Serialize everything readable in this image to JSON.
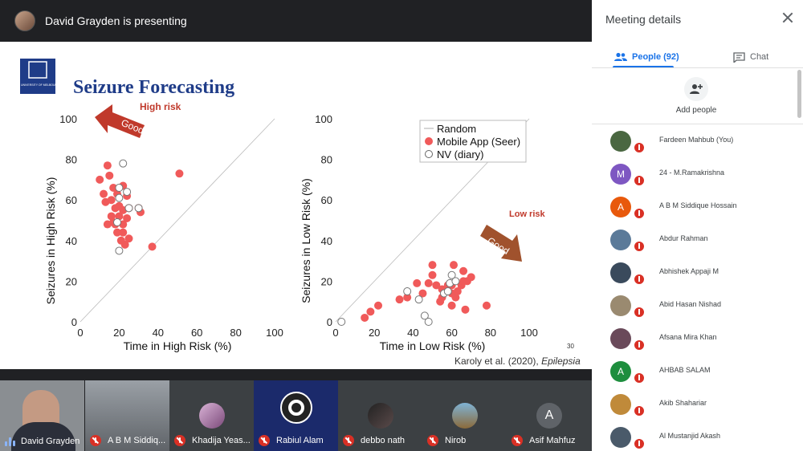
{
  "presenter_bar": {
    "title": "David Grayden is presenting"
  },
  "slide": {
    "logo_text": "THE UNIVERSITY OF MELBOURNE",
    "title": "Seizure Forecasting",
    "high_risk_label": "High risk",
    "low_risk_label": "Low risk",
    "good_label": "Good",
    "page_number": "30",
    "citation_prefix": "Karoly et al. (2020), ",
    "citation_journal": "Epilepsia",
    "colors": {
      "title": "#1f3c88",
      "risk_label": "#c0392b",
      "arrow_red": "#c0392b",
      "arrow_brown": "#a0522d",
      "seer": "#f05a5a",
      "diary_stroke": "#777777"
    }
  },
  "chart_data": [
    {
      "type": "scatter",
      "xlabel": "Time in High Risk (%)",
      "ylabel": "Seizures in High Risk (%)",
      "xlim": [
        0,
        100
      ],
      "ylim": [
        0,
        100
      ],
      "xticks": [
        "0",
        "20",
        "40",
        "60",
        "80",
        "100"
      ],
      "yticks": [
        "0",
        "20",
        "40",
        "60",
        "80",
        "100"
      ],
      "diagonal": true,
      "series": [
        {
          "name": "Mobile App (Seer)",
          "marker": "filled",
          "points": [
            [
              10,
              70
            ],
            [
              12,
              63
            ],
            [
              14,
              77
            ],
            [
              15,
              72
            ],
            [
              13,
              59
            ],
            [
              17,
              66
            ],
            [
              16,
              60
            ],
            [
              19,
              63
            ],
            [
              22,
              67
            ],
            [
              24,
              62
            ],
            [
              20,
              57
            ],
            [
              18,
              56
            ],
            [
              22,
              55
            ],
            [
              25,
              56
            ],
            [
              16,
              52
            ],
            [
              20,
              52
            ],
            [
              17,
              49
            ],
            [
              14,
              48
            ],
            [
              18,
              48
            ],
            [
              24,
              51
            ],
            [
              22,
              48
            ],
            [
              19,
              44
            ],
            [
              22,
              44
            ],
            [
              21,
              40
            ],
            [
              25,
              41
            ],
            [
              23,
              38
            ],
            [
              30,
              56
            ],
            [
              31,
              54
            ],
            [
              37,
              37
            ],
            [
              51,
              73
            ]
          ]
        },
        {
          "name": "NV (diary)",
          "marker": "open",
          "points": [
            [
              22,
              78
            ],
            [
              20,
              66
            ],
            [
              24,
              64
            ],
            [
              20,
              61
            ],
            [
              25,
              56
            ],
            [
              30,
              56
            ],
            [
              20,
              35
            ],
            [
              19,
              49
            ]
          ]
        }
      ]
    },
    {
      "type": "scatter",
      "xlabel": "Time in Low Risk (%)",
      "ylabel": "Seizures in Low Risk (%)",
      "xlim": [
        0,
        100
      ],
      "ylim": [
        0,
        100
      ],
      "xticks": [
        "0",
        "20",
        "40",
        "60",
        "80",
        "100"
      ],
      "yticks": [
        "0",
        "20",
        "40",
        "60",
        "80",
        "100"
      ],
      "diagonal": true,
      "legend": {
        "position": "top-left",
        "entries": [
          "Random",
          "Mobile App (Seer)",
          "NV (diary)"
        ]
      },
      "series": [
        {
          "name": "Mobile App (Seer)",
          "marker": "filled",
          "points": [
            [
              15,
              2
            ],
            [
              18,
              5
            ],
            [
              22,
              8
            ],
            [
              33,
              11
            ],
            [
              37,
              12
            ],
            [
              42,
              19
            ],
            [
              48,
              19
            ],
            [
              50,
              23
            ],
            [
              50,
              28
            ],
            [
              52,
              18
            ],
            [
              55,
              16
            ],
            [
              55,
              12
            ],
            [
              54,
              10
            ],
            [
              58,
              18
            ],
            [
              60,
              18
            ],
            [
              61,
              28
            ],
            [
              60,
              8
            ],
            [
              62,
              12
            ],
            [
              63,
              15
            ],
            [
              65,
              18
            ],
            [
              66,
              25
            ],
            [
              66,
              20
            ],
            [
              67,
              6
            ],
            [
              68,
              20
            ],
            [
              70,
              22
            ],
            [
              60,
              14
            ],
            [
              78,
              8
            ],
            [
              45,
              14
            ]
          ]
        },
        {
          "name": "NV (diary)",
          "marker": "open",
          "points": [
            [
              3,
              0
            ],
            [
              37,
              15
            ],
            [
              43,
              11
            ],
            [
              46,
              3
            ],
            [
              48,
              0
            ],
            [
              56,
              14
            ],
            [
              59,
              19
            ],
            [
              60,
              23
            ],
            [
              62,
              20
            ],
            [
              58,
              15
            ]
          ]
        }
      ]
    }
  ],
  "tiles": [
    {
      "name": "David Grayden",
      "kind": "video",
      "speaking": true
    },
    {
      "name": "A B M Siddiq...",
      "kind": "video",
      "muted": true
    },
    {
      "name": "Khadija Yeas...",
      "kind": "avatar",
      "muted": true
    },
    {
      "name": "Rabiul Alam",
      "kind": "obs",
      "muted": true
    },
    {
      "name": "debbo nath",
      "kind": "avatar",
      "muted": true
    },
    {
      "name": "Nirob",
      "kind": "avatar",
      "muted": true
    },
    {
      "name": "Asif Mahfuz",
      "kind": "letter",
      "letter": "A",
      "muted": true
    }
  ],
  "panel": {
    "title": "Meeting details",
    "tab_people": "People (92)",
    "tab_chat": "Chat",
    "add_people": "Add people",
    "people": [
      {
        "name": "Fardeen Mahbub (You)",
        "avatar": "photo",
        "color": "#4a6741"
      },
      {
        "name": "24 - M.Ramakrishna",
        "avatar": "M",
        "color": "#7e57c2"
      },
      {
        "name": "A B M Siddique Hossain",
        "avatar": "A",
        "color": "#e8590c"
      },
      {
        "name": "Abdur Rahman",
        "avatar": "photo",
        "color": "#5b7a99"
      },
      {
        "name": "Abhishek Appaji M",
        "avatar": "photo",
        "color": "#3a4a5c"
      },
      {
        "name": "Abid Hasan Nishad",
        "avatar": "photo",
        "color": "#9a8a70"
      },
      {
        "name": "Afsana Mira Khan",
        "avatar": "photo",
        "color": "#6a4a5a"
      },
      {
        "name": "AHBAB SALAM",
        "avatar": "A",
        "color": "#1e8e3e"
      },
      {
        "name": "Akib Shahariar",
        "avatar": "photo",
        "color": "#c08a3a"
      },
      {
        "name": "Al Mustanjid Akash",
        "avatar": "photo",
        "color": "#4a5a6a"
      }
    ]
  }
}
